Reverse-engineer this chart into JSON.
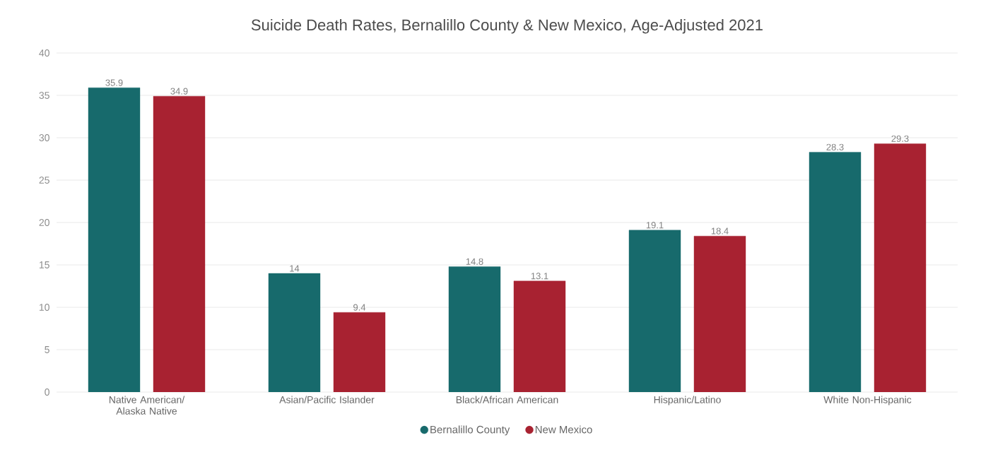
{
  "chart_data": {
    "type": "bar",
    "title": "Suicide Death Rates, Bernalillo County & New Mexico, Age-Adjusted 2021",
    "categories": [
      "Native American/ Alaska Native",
      "Asian/Pacific Islander",
      "Black/African American",
      "Hispanic/Latino",
      "White Non-Hispanic"
    ],
    "series": [
      {
        "name": "Bernalillo County",
        "color": "#176a6c",
        "values": [
          35.9,
          14,
          14.8,
          19.1,
          28.3
        ]
      },
      {
        "name": "New Mexico",
        "color": "#a82231",
        "values": [
          34.9,
          9.4,
          13.1,
          18.4,
          29.3
        ]
      }
    ],
    "ylim": [
      0,
      40
    ],
    "yticks": [
      0,
      5,
      10,
      15,
      20,
      25,
      30,
      35,
      40
    ],
    "grid": "y",
    "legend": "bottom",
    "data_labels": true
  }
}
